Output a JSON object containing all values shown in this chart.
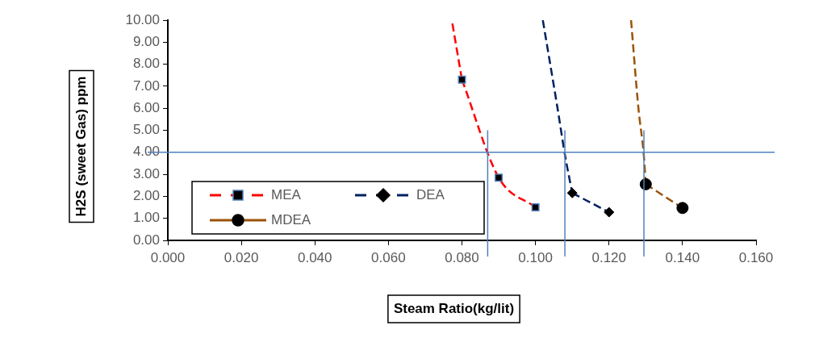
{
  "chart_data": {
    "type": "line",
    "xlabel": "Steam Ratio(kg/lit)",
    "ylabel": "H2S (sweet Gas) ppm",
    "xlim": [
      0,
      0.16
    ],
    "xticks": [
      {
        "value": 0,
        "label": "0.000"
      },
      {
        "value": 0.02,
        "label": "0.020"
      },
      {
        "value": 0.04,
        "label": "0.040"
      },
      {
        "value": 0.06,
        "label": "0.060"
      },
      {
        "value": 0.08,
        "label": "0.080"
      },
      {
        "value": 0.1,
        "label": "0.100"
      },
      {
        "value": 0.12,
        "label": "0.120"
      },
      {
        "value": 0.14,
        "label": "0.140"
      },
      {
        "value": 0.16,
        "label": "0.160"
      }
    ],
    "ylim": [
      0,
      10
    ],
    "yticks": [
      {
        "value": 0,
        "label": "0.00"
      },
      {
        "value": 1,
        "label": "1.00"
      },
      {
        "value": 2,
        "label": "2.00"
      },
      {
        "value": 3,
        "label": "3.00"
      },
      {
        "value": 4,
        "label": "4.00"
      },
      {
        "value": 5,
        "label": "5.00"
      },
      {
        "value": 6,
        "label": "6.00"
      },
      {
        "value": 7,
        "label": "7.00"
      },
      {
        "value": 8,
        "label": "8.00"
      },
      {
        "value": 9,
        "label": "9.00"
      },
      {
        "value": 10,
        "label": "10.00"
      }
    ],
    "grid": false,
    "legend": "bottom left",
    "series": [
      {
        "name": "MEA",
        "color": "#ff0000",
        "marker": "square",
        "line_style": "dashed",
        "x": [
          0.08,
          0.09,
          0.1
        ],
        "values": [
          7.3,
          2.85,
          1.5
        ]
      },
      {
        "name": "DEA",
        "color": "#002060",
        "marker": "diamond",
        "line_style": "dashed",
        "x": [
          0.11,
          0.12
        ],
        "values": [
          2.15,
          1.28
        ]
      },
      {
        "name": "MDEA",
        "color": "#9c5208",
        "marker": "circle",
        "line_style": "dashed",
        "x": [
          0.13,
          0.14
        ],
        "values": [
          2.55,
          1.47
        ]
      },
      {
        "type": "line",
        "color": "#ff0000",
        "marker": "none",
        "line_style": "dashed",
        "x": [
          0.0774,
          0.08
        ],
        "values": [
          9.85,
          7.3
        ]
      },
      {
        "type": "line",
        "color": "#002060",
        "marker": "none",
        "line_style": "dashed",
        "x": [
          0.102,
          0.106,
          0.108,
          0.11
        ],
        "values": [
          10,
          6,
          3.9,
          2.15
        ]
      },
      {
        "type": "line",
        "color": "#9c5208",
        "marker": "none",
        "line_style": "dashed",
        "x": [
          0.126,
          0.128,
          0.1295,
          0.13
        ],
        "values": [
          10,
          6,
          3.8,
          2.55
        ]
      }
    ],
    "ref_lines": [
      {
        "axis": "y",
        "value": 4,
        "color": "#4f81bd"
      },
      {
        "axis": "x",
        "value": 0.087,
        "color": "#4f81bd"
      },
      {
        "axis": "x",
        "value": 0.108,
        "color": "#4f81bd"
      },
      {
        "axis": "x",
        "value": 0.1295,
        "color": "#4f81bd"
      }
    ]
  }
}
